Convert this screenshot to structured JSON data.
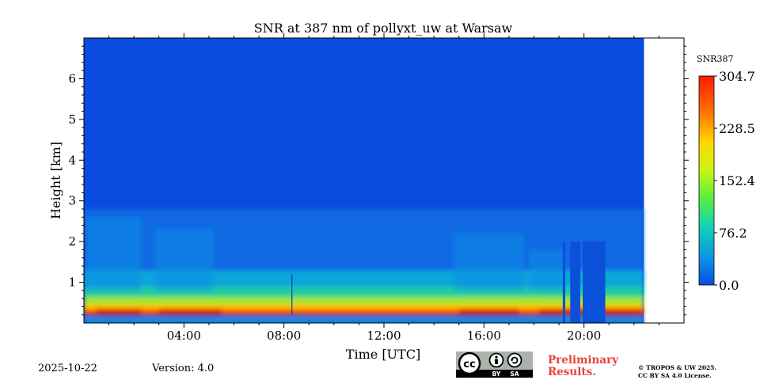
{
  "chart_data": {
    "type": "heatmap",
    "title": "SNR at 387 nm of pollyxt_uw at Warsaw",
    "xlabel": "Time [UTC]",
    "ylabel": "Height [km]",
    "x_unit": "hours UTC",
    "xlim": [
      0,
      24
    ],
    "ylim": [
      0,
      7
    ],
    "x_ticks": [
      {
        "value": 4,
        "label": "04:00"
      },
      {
        "value": 8,
        "label": "08:00"
      },
      {
        "value": 12,
        "label": "12:00"
      },
      {
        "value": 16,
        "label": "16:00"
      },
      {
        "value": 20,
        "label": "20:00"
      }
    ],
    "y_ticks": [
      {
        "value": 1,
        "label": "1"
      },
      {
        "value": 2,
        "label": "2"
      },
      {
        "value": 3,
        "label": "3"
      },
      {
        "value": 4,
        "label": "4"
      },
      {
        "value": 5,
        "label": "5"
      },
      {
        "value": 6,
        "label": "6"
      }
    ],
    "data_end_hour": 22.4,
    "colorbar": {
      "label": "SNR387",
      "min": 0.0,
      "max": 304.7,
      "ticks": [
        {
          "value": 0.0,
          "label": "0.0"
        },
        {
          "value": 76.2,
          "label": "76.2"
        },
        {
          "value": 152.4,
          "label": "152.4"
        },
        {
          "value": 228.5,
          "label": "228.5"
        },
        {
          "value": 304.7,
          "label": "304.7"
        }
      ],
      "colormap": "jet"
    },
    "grid": false
  },
  "footer": {
    "date": "2025-10-22",
    "version": "Version: 4.0",
    "preliminary_line1": "Preliminary",
    "preliminary_line2": "Results.",
    "copyright_line1": "© TROPOS & UW 2025.",
    "copyright_line2": "CC BY SA 4.0 License.",
    "license_badge": {
      "cc": "cc",
      "by": "BY",
      "sa": "SA"
    }
  }
}
